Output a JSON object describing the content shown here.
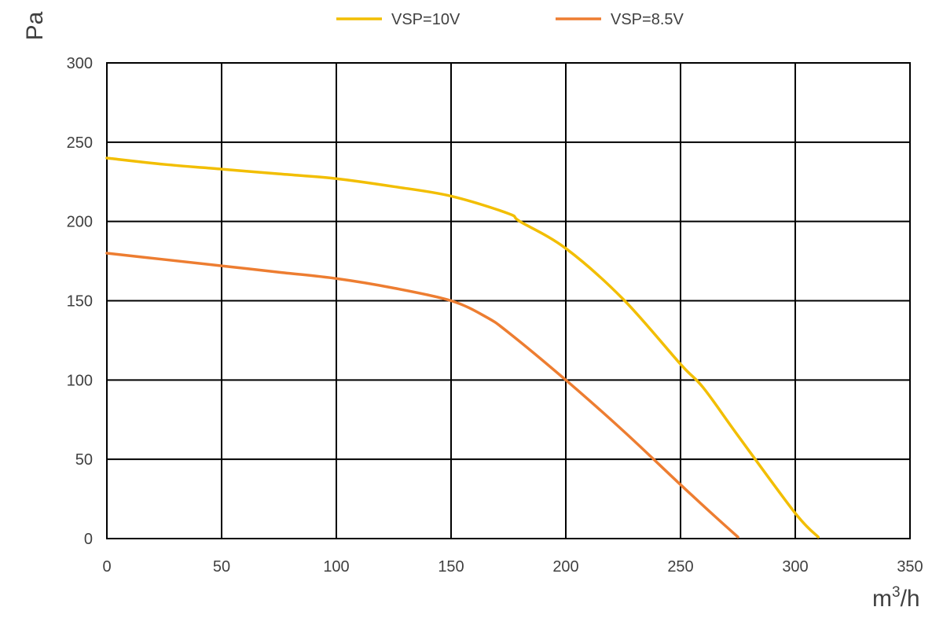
{
  "chart_data": {
    "type": "line",
    "title": "",
    "xlabel_main": "m",
    "xlabel_sup": "3",
    "xlabel_tail": "/h",
    "ylabel": "Pa",
    "xlim": [
      0,
      350
    ],
    "ylim": [
      0,
      300
    ],
    "x_ticks": [
      0,
      50,
      100,
      150,
      200,
      250,
      300,
      350
    ],
    "y_ticks": [
      0,
      50,
      100,
      150,
      200,
      250,
      300
    ],
    "grid": true,
    "legend_position": "top",
    "series": [
      {
        "name": "VSP=10V",
        "color": "#F2BE00",
        "x": [
          0,
          25,
          50,
          75,
          100,
          125,
          150,
          175,
          180,
          200,
          225,
          250,
          260,
          275,
          300,
          310
        ],
        "y": [
          240,
          236,
          233,
          230,
          227,
          222,
          216,
          205,
          200,
          183,
          151,
          110,
          95,
          65,
          16,
          1
        ]
      },
      {
        "name": "VSP=8.5V",
        "color": "#ED7D31",
        "x": [
          0,
          25,
          50,
          75,
          100,
          125,
          150,
          165,
          175,
          200,
          225,
          250,
          265,
          275
        ],
        "y": [
          180,
          176,
          172,
          168,
          164,
          158,
          150,
          140,
          130,
          100,
          68,
          34,
          14,
          1
        ]
      }
    ]
  }
}
